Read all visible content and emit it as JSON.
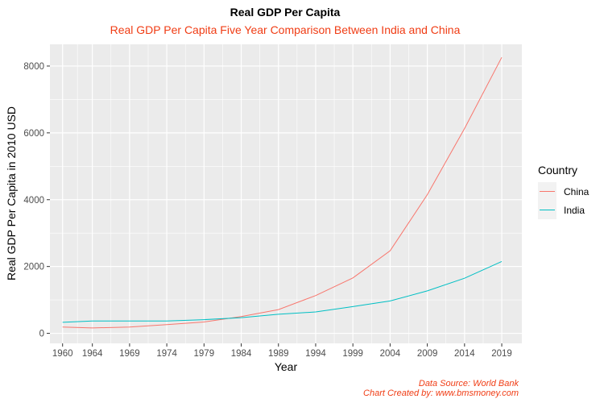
{
  "chart_data": {
    "type": "line",
    "title": "Real GDP Per Capita",
    "subtitle": "Real GDP Per Capita Five Year Comparison Between India and China",
    "xlabel": "Year",
    "ylabel": "Real GDP Per Capita in 2010 USD",
    "x_ticks": [
      1960,
      1964,
      1969,
      1974,
      1979,
      1984,
      1989,
      1994,
      1999,
      2004,
      2009,
      2014,
      2019
    ],
    "xlim": [
      1958.3,
      2021.7
    ],
    "y_ticks": [
      0,
      2000,
      4000,
      6000,
      8000
    ],
    "ylim": [
      -300,
      8650
    ],
    "grid": true,
    "legend": {
      "title": "Country",
      "placement": "right"
    },
    "series": [
      {
        "name": "China",
        "color": "#F8766D",
        "x": [
          1960,
          1964,
          1969,
          1974,
          1979,
          1984,
          1989,
          1994,
          1999,
          2004,
          2009,
          2014,
          2019
        ],
        "y": [
          190,
          160,
          190,
          260,
          340,
          500,
          710,
          1130,
          1660,
          2470,
          4150,
          6130,
          8260
        ]
      },
      {
        "name": "India",
        "color": "#00BFC4",
        "x": [
          1960,
          1964,
          1969,
          1974,
          1979,
          1984,
          1989,
          1994,
          1999,
          2004,
          2009,
          2014,
          2019
        ],
        "y": [
          330,
          370,
          370,
          370,
          410,
          470,
          570,
          640,
          800,
          970,
          1270,
          1650,
          2150
        ]
      }
    ],
    "caption": {
      "line1": "Data Source: World Bank",
      "line2": "Chart Created by: www.bmsmoney.com"
    },
    "colors": {
      "panel_bg": "#EBEBEB",
      "grid": "#FFFFFF",
      "subtitle": "#F03C14",
      "caption": "#F03C14"
    }
  }
}
